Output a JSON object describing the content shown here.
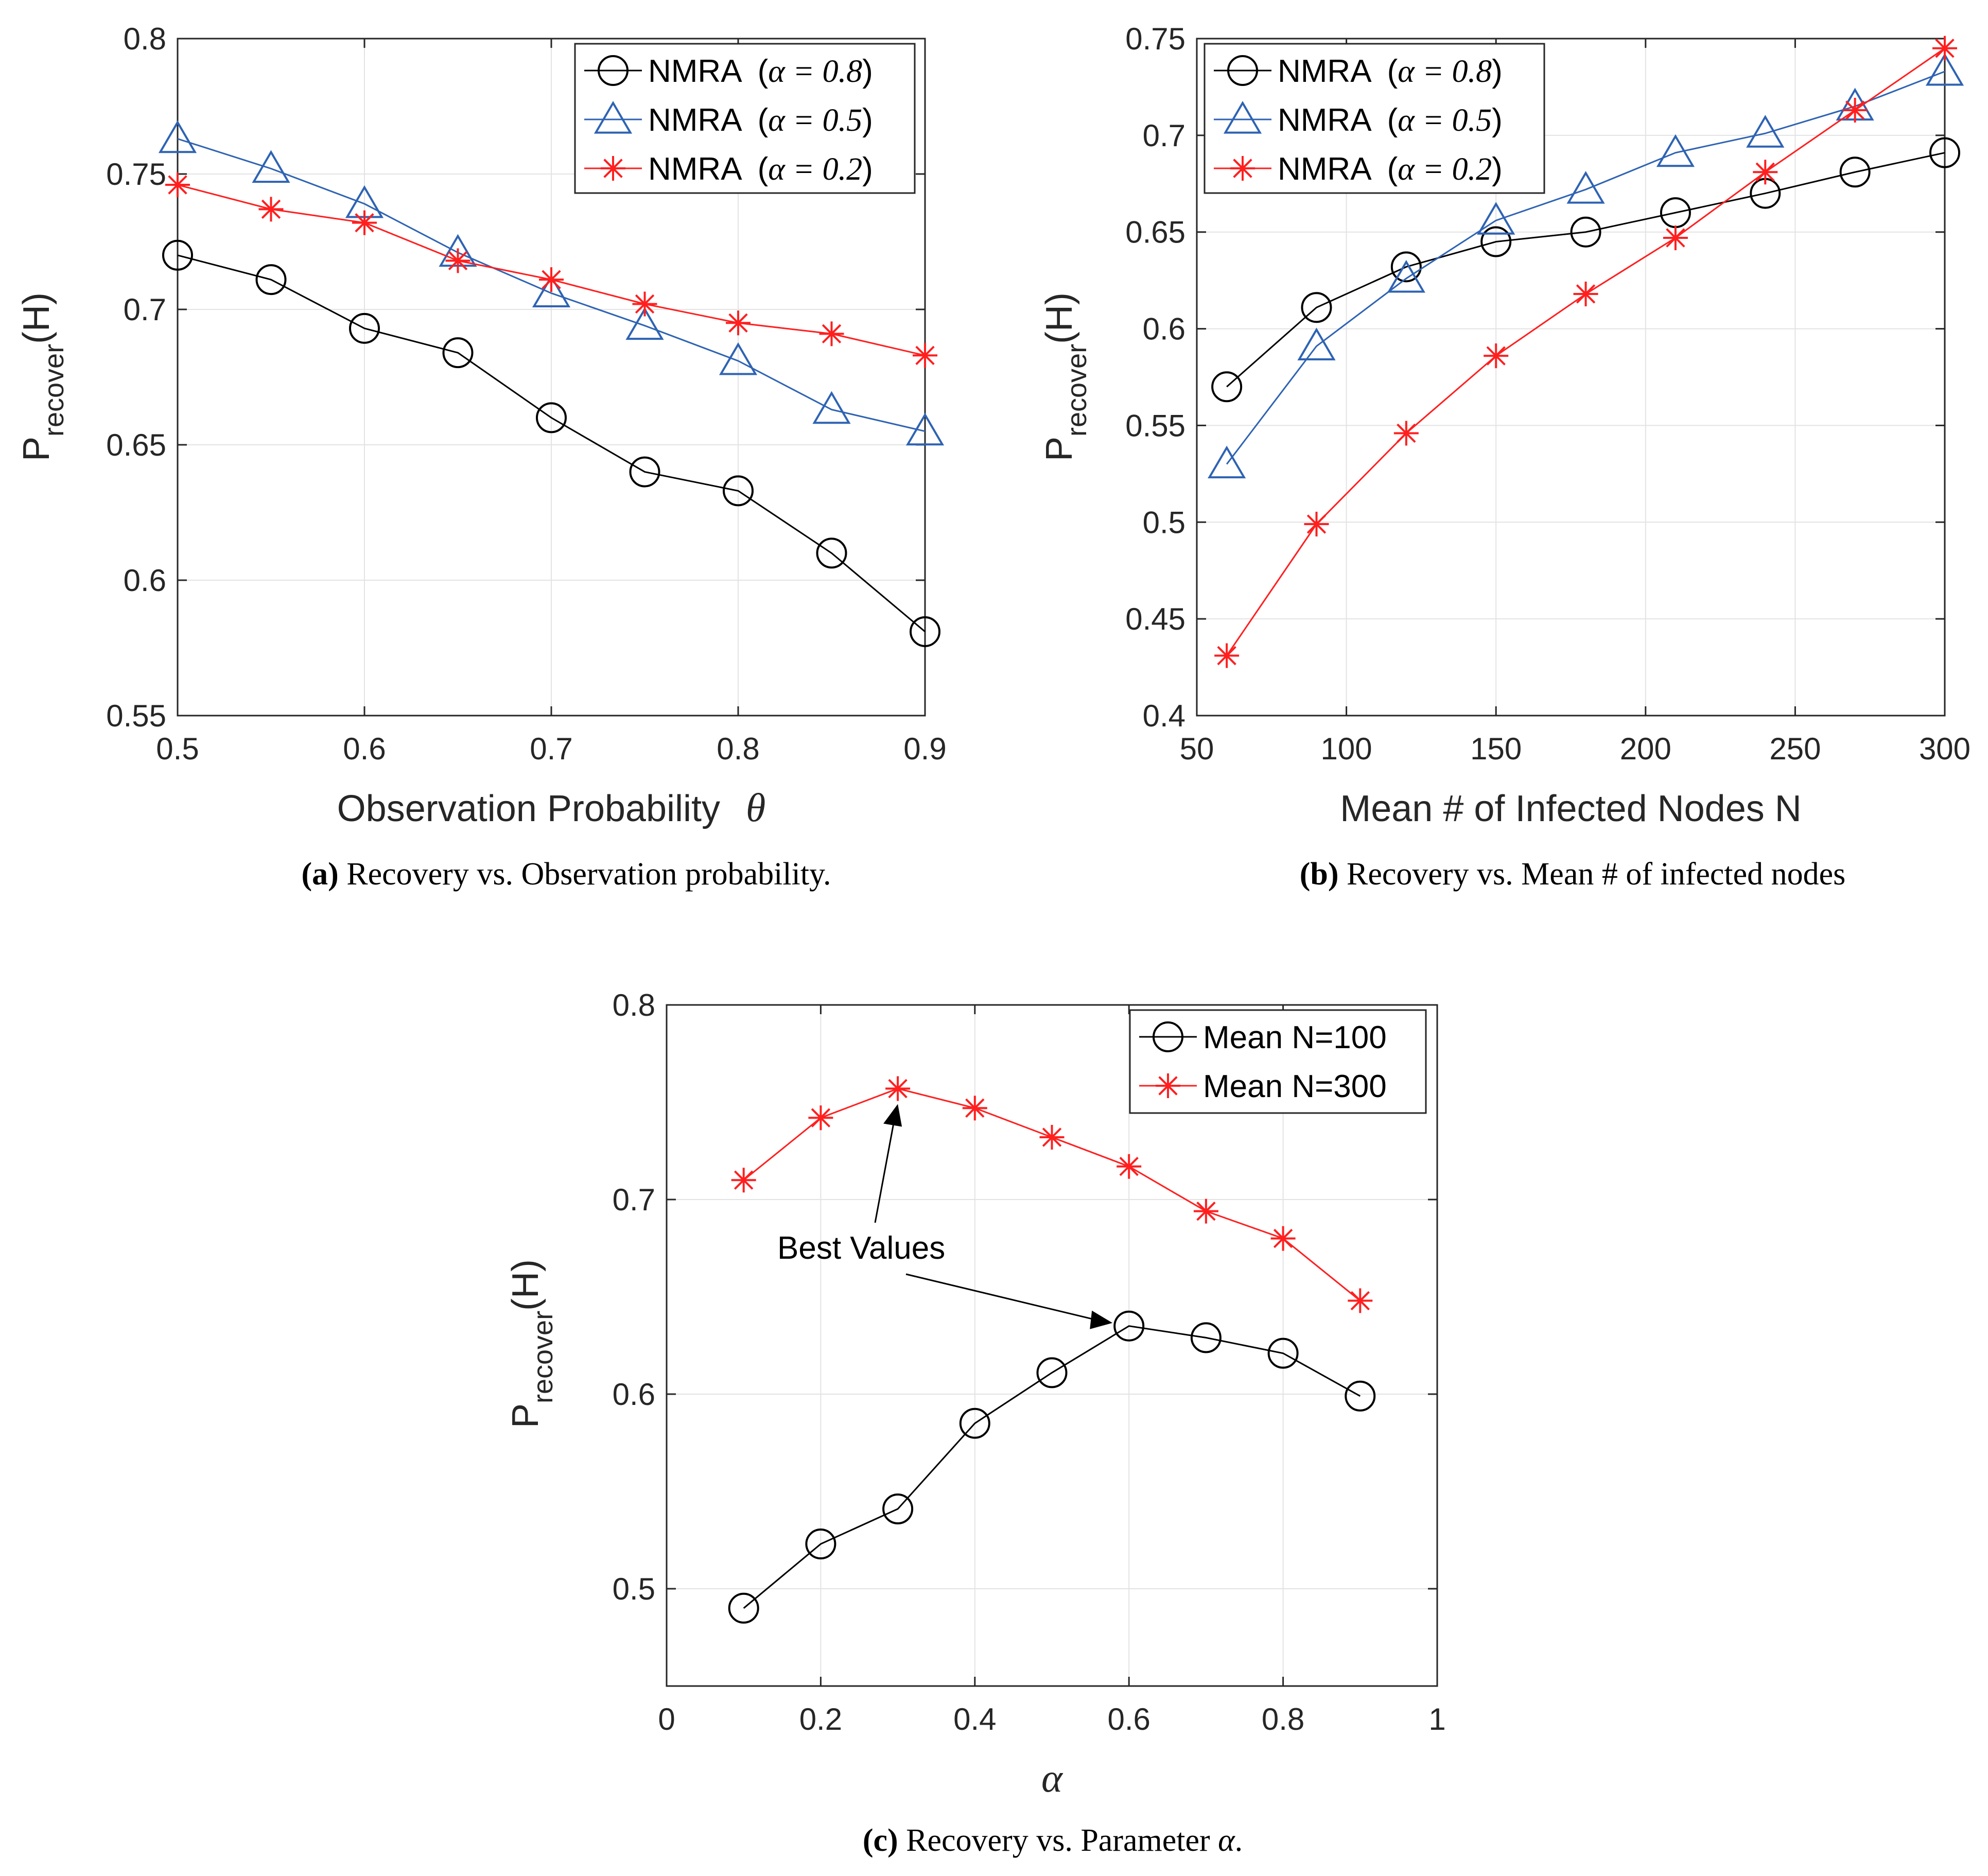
{
  "chart_data": [
    {
      "id": "a",
      "type": "line",
      "xlabel": "Observation Probability",
      "xlabel_symbol": "θ",
      "ylabel_main": "P",
      "ylabel_sub": "recover",
      "ylabel_suffix": "(H)",
      "xlim": [
        0.5,
        0.9
      ],
      "ylim": [
        0.55,
        0.8
      ],
      "xticks": [
        0.5,
        0.6,
        0.7,
        0.8,
        0.9
      ],
      "xtick_labels": [
        "0.5",
        "0.6",
        "0.7",
        "0.8",
        "0.9"
      ],
      "yticks": [
        0.55,
        0.6,
        0.65,
        0.7,
        0.75,
        0.8
      ],
      "ytick_labels": [
        "0.55",
        "0.6",
        "0.65",
        "0.7",
        "0.75",
        "0.8"
      ],
      "grid": true,
      "legend_position": "top-right",
      "x": [
        0.5,
        0.55,
        0.6,
        0.65,
        0.7,
        0.75,
        0.8,
        0.85,
        0.9
      ],
      "series": [
        {
          "name": "NMRA",
          "param": "α = 0.8",
          "color": "#000000",
          "marker": "circle",
          "values": [
            0.72,
            0.711,
            0.693,
            0.684,
            0.66,
            0.64,
            0.633,
            0.61,
            0.581
          ]
        },
        {
          "name": "NMRA",
          "param": "α = 0.5",
          "color": "#2e63b3",
          "marker": "triangle",
          "values": [
            0.763,
            0.752,
            0.739,
            0.721,
            0.706,
            0.694,
            0.681,
            0.663,
            0.655
          ]
        },
        {
          "name": "NMRA",
          "param": "α = 0.2",
          "color": "#ff1f1f",
          "marker": "star",
          "values": [
            0.746,
            0.737,
            0.732,
            0.718,
            0.711,
            0.702,
            0.695,
            0.691,
            0.683
          ]
        }
      ],
      "caption_label": "(a)",
      "caption_text": " Recovery vs. Observation probability."
    },
    {
      "id": "b",
      "type": "line",
      "xlabel": "Mean # of Infected Nodes N",
      "ylabel_main": "P",
      "ylabel_sub": "recover",
      "ylabel_suffix": "(H)",
      "xlim": [
        50,
        300
      ],
      "ylim": [
        0.4,
        0.75
      ],
      "xticks": [
        50,
        100,
        150,
        200,
        250,
        300
      ],
      "xtick_labels": [
        "50",
        "100",
        "150",
        "200",
        "250",
        "300"
      ],
      "yticks": [
        0.4,
        0.45,
        0.5,
        0.55,
        0.6,
        0.65,
        0.7,
        0.75
      ],
      "ytick_labels": [
        "0.4",
        "0.45",
        "0.5",
        "0.55",
        "0.6",
        "0.65",
        "0.7",
        "0.75"
      ],
      "grid": true,
      "legend_position": "top-left",
      "x": [
        60,
        90,
        120,
        150,
        180,
        210,
        240,
        270,
        300
      ],
      "series": [
        {
          "name": "NMRA",
          "param": "α = 0.8",
          "color": "#000000",
          "marker": "circle",
          "values": [
            0.57,
            0.611,
            0.632,
            0.645,
            0.65,
            0.66,
            0.67,
            0.681,
            0.691
          ]
        },
        {
          "name": "NMRA",
          "param": "α = 0.5",
          "color": "#2e63b3",
          "marker": "triangle",
          "values": [
            0.53,
            0.591,
            0.626,
            0.656,
            0.672,
            0.691,
            0.701,
            0.715,
            0.733
          ]
        },
        {
          "name": "NMRA",
          "param": "α = 0.2",
          "color": "#ff1f1f",
          "marker": "star",
          "values": [
            0.431,
            0.499,
            0.546,
            0.586,
            0.618,
            0.647,
            0.681,
            0.713,
            0.745
          ]
        }
      ],
      "caption_label": "(b)",
      "caption_text": " Recovery vs. Mean # of infected nodes"
    },
    {
      "id": "c",
      "type": "line",
      "xlabel": "",
      "xlabel_symbol": "α",
      "ylabel_main": "P",
      "ylabel_sub": "recover",
      "ylabel_suffix": "(H)",
      "xlim": [
        0,
        1
      ],
      "ylim": [
        0.45,
        0.8
      ],
      "xticks": [
        0,
        0.2,
        0.4,
        0.6,
        0.8,
        1
      ],
      "xtick_labels": [
        "0",
        "0.2",
        "0.4",
        "0.6",
        "0.8",
        "1"
      ],
      "yticks": [
        0.5,
        0.6,
        0.7,
        0.8
      ],
      "ytick_labels": [
        "0.5",
        "0.6",
        "0.7",
        "0.8"
      ],
      "grid": true,
      "legend_position": "top-right",
      "x": [
        0.1,
        0.2,
        0.3,
        0.4,
        0.5,
        0.6,
        0.7,
        0.8,
        0.9
      ],
      "series": [
        {
          "name": "Mean N=100",
          "color": "#000000",
          "marker": "circle",
          "values": [
            0.49,
            0.523,
            0.541,
            0.585,
            0.611,
            0.635,
            0.629,
            0.621,
            0.599
          ]
        },
        {
          "name": "Mean N=300",
          "color": "#ff1f1f",
          "marker": "star",
          "values": [
            0.71,
            0.742,
            0.757,
            0.747,
            0.732,
            0.717,
            0.694,
            0.68,
            0.648
          ]
        }
      ],
      "annotation": {
        "text": "Best Values"
      },
      "caption_label": "(c)",
      "caption_text": " Recovery vs. Parameter ",
      "caption_symbol": "α",
      "caption_end": "."
    }
  ]
}
